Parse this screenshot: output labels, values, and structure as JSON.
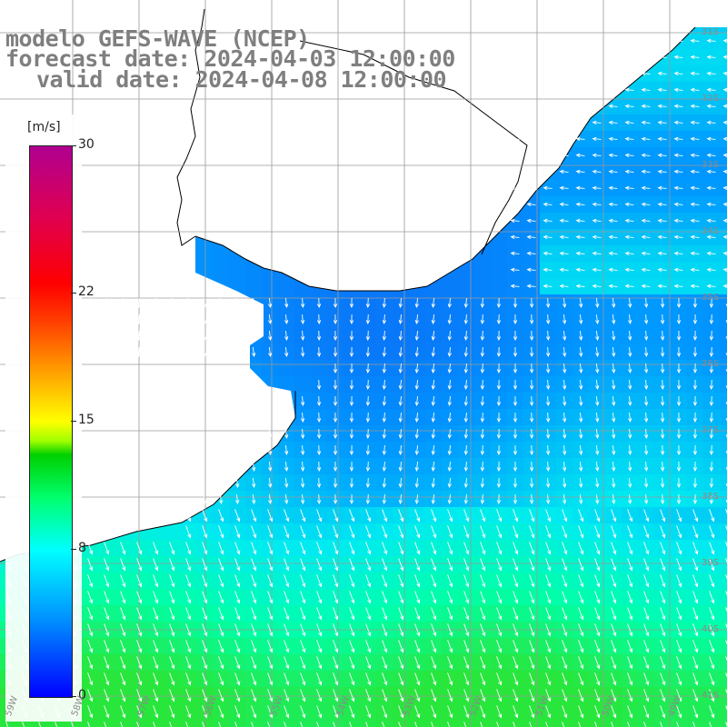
{
  "header": {
    "line1": "modelo GEFS-WAVE (NCEP)",
    "line2": "forecast date: 2024-04-03 12:00:00",
    "line3": "valid date: 2024-04-08 12:00:00"
  },
  "colorbar": {
    "units": "[m/s]",
    "ticks": [
      "30",
      "22",
      "15",
      "8",
      "0"
    ],
    "tick_values": [
      30,
      22,
      15,
      8,
      0
    ],
    "range": [
      0,
      30
    ],
    "colors": {
      "min": "#0000ff",
      "low": "#0090ff",
      "mid_low": "#00ffff",
      "mid": "#00d000",
      "mid_high": "#ffff00",
      "high": "#ff0000",
      "max": "#b00090"
    }
  },
  "map": {
    "land_color": "#ffffff",
    "coastline_color": "#000000",
    "grid_color": "#9a9a9a",
    "arrow_color": "#ffffff",
    "lat_labels": [
      "31S",
      "32S",
      "33S",
      "34S",
      "35S",
      "36S",
      "37S",
      "38S",
      "39S",
      "40S",
      "41S"
    ],
    "lon_labels": [
      "59W",
      "58W",
      "57W",
      "56W",
      "55W",
      "54W",
      "53W",
      "52W",
      "51W",
      "50W",
      "49W"
    ]
  }
}
